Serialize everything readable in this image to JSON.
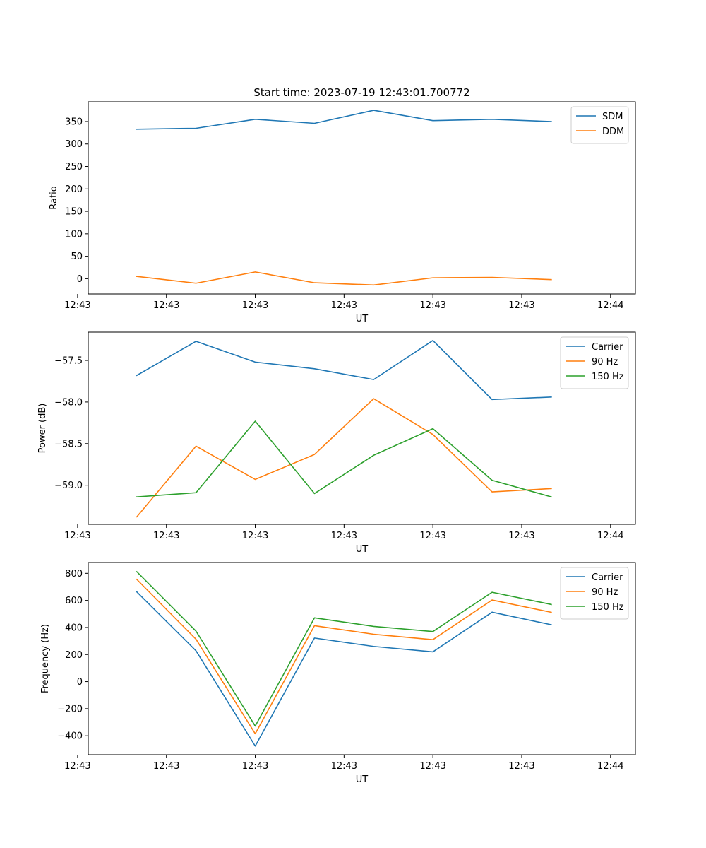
{
  "figure_title": "Start time: 2023-07-19 12:43:01.700772",
  "chart_data": [
    {
      "type": "line",
      "title": "Start time: 2023-07-19 12:43:01.700772",
      "xlabel": "UT",
      "ylabel": "Ratio",
      "x": [
        1,
        2,
        3,
        4,
        5,
        6,
        7,
        8
      ],
      "xlim": [
        0.18,
        9.42
      ],
      "x_ticks": [
        {
          "pos": 0,
          "label": "12:43"
        },
        {
          "pos": 1.5,
          "label": "12:43"
        },
        {
          "pos": 3,
          "label": "12:43"
        },
        {
          "pos": 4.5,
          "label": "12:43"
        },
        {
          "pos": 6,
          "label": "12:43"
        },
        {
          "pos": 7.5,
          "label": "12:43"
        },
        {
          "pos": 9,
          "label": "12:44"
        }
      ],
      "ylim": [
        -34,
        394
      ],
      "y_ticks": [
        {
          "value": 0,
          "label": "0"
        },
        {
          "value": 50,
          "label": "50"
        },
        {
          "value": 100,
          "label": "100"
        },
        {
          "value": 150,
          "label": "150"
        },
        {
          "value": 200,
          "label": "200"
        },
        {
          "value": 250,
          "label": "250"
        },
        {
          "value": 300,
          "label": "300"
        },
        {
          "value": 350,
          "label": "350"
        }
      ],
      "legend_position": "upper-right",
      "series": [
        {
          "name": "SDM",
          "color": "#1f77b4",
          "values": [
            333,
            335,
            355,
            346,
            375,
            352,
            355,
            350
          ]
        },
        {
          "name": "DDM",
          "color": "#ff7f0e",
          "values": [
            5,
            -10,
            15,
            -9,
            -14,
            2,
            3,
            -2
          ]
        }
      ]
    },
    {
      "type": "line",
      "title": "",
      "xlabel": "UT",
      "ylabel": "Power (dB)",
      "x": [
        1,
        2,
        3,
        4,
        5,
        6,
        7,
        8
      ],
      "xlim": [
        0.18,
        9.42
      ],
      "x_ticks": [
        {
          "pos": 0,
          "label": "12:43"
        },
        {
          "pos": 1.5,
          "label": "12:43"
        },
        {
          "pos": 3,
          "label": "12:43"
        },
        {
          "pos": 4.5,
          "label": "12:43"
        },
        {
          "pos": 6,
          "label": "12:43"
        },
        {
          "pos": 7.5,
          "label": "12:43"
        },
        {
          "pos": 9,
          "label": "12:44"
        }
      ],
      "ylim": [
        -59.47,
        -57.16
      ],
      "y_ticks": [
        {
          "value": -59.0,
          "label": "−59.0"
        },
        {
          "value": -58.5,
          "label": "−58.5"
        },
        {
          "value": -58.0,
          "label": "−58.0"
        },
        {
          "value": -57.5,
          "label": "−57.5"
        }
      ],
      "legend_position": "upper-right",
      "series": [
        {
          "name": "Carrier",
          "color": "#1f77b4",
          "values": [
            -57.68,
            -57.27,
            -57.52,
            -57.6,
            -57.73,
            -57.26,
            -57.97,
            -57.94
          ]
        },
        {
          "name": "90 Hz",
          "color": "#ff7f0e",
          "values": [
            -59.38,
            -58.53,
            -58.93,
            -58.63,
            -57.96,
            -58.39,
            -59.08,
            -59.04
          ]
        },
        {
          "name": "150 Hz",
          "color": "#2ca02c",
          "values": [
            -59.14,
            -59.09,
            -58.23,
            -59.1,
            -58.64,
            -58.32,
            -58.94,
            -59.14
          ]
        }
      ]
    },
    {
      "type": "line",
      "title": "",
      "xlabel": "UT",
      "ylabel": "Frequency (Hz)",
      "x": [
        1,
        2,
        3,
        4,
        5,
        6,
        7,
        8
      ],
      "xlim": [
        0.18,
        9.42
      ],
      "x_ticks": [
        {
          "pos": 0,
          "label": "12:43"
        },
        {
          "pos": 1.5,
          "label": "12:43"
        },
        {
          "pos": 3,
          "label": "12:43"
        },
        {
          "pos": 4.5,
          "label": "12:43"
        },
        {
          "pos": 6,
          "label": "12:43"
        },
        {
          "pos": 7.5,
          "label": "12:43"
        },
        {
          "pos": 9,
          "label": "12:44"
        }
      ],
      "ylim": [
        -540,
        880
      ],
      "y_ticks": [
        {
          "value": -400,
          "label": "−400"
        },
        {
          "value": -200,
          "label": "−200"
        },
        {
          "value": 0,
          "label": "0"
        },
        {
          "value": 200,
          "label": "200"
        },
        {
          "value": 400,
          "label": "400"
        },
        {
          "value": 600,
          "label": "600"
        },
        {
          "value": 800,
          "label": "800"
        }
      ],
      "legend_position": "upper-right",
      "series": [
        {
          "name": "Carrier",
          "color": "#1f77b4",
          "values": [
            663,
            228,
            -476,
            322,
            260,
            220,
            513,
            420
          ]
        },
        {
          "name": "90 Hz",
          "color": "#ff7f0e",
          "values": [
            755,
            313,
            -385,
            413,
            350,
            310,
            603,
            512
          ]
        },
        {
          "name": "150 Hz",
          "color": "#2ca02c",
          "values": [
            812,
            373,
            -328,
            471,
            408,
            370,
            660,
            570
          ]
        }
      ]
    }
  ]
}
